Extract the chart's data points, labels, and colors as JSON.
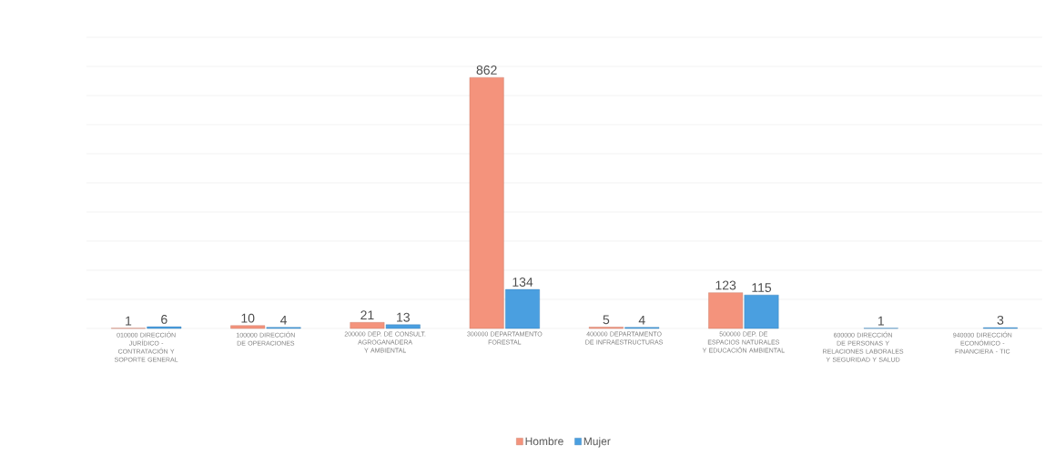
{
  "chart_data": {
    "type": "bar",
    "categories": [
      "010000 DIRECCIÓN JURÍDICO - CONTRATACIÓN Y SOPORTE GENERAL",
      "100000 DIRECCIÓN DE OPERACIONES",
      "200000 DEP. DE CONSULT. AGROGANADERA Y AMBIENTAL",
      "300000 DEPARTAMENTO FORESTAL",
      "400000 DEPARTAMENTO DE INFRAESTRUCTURAS",
      "500000 DEP. DE ESPACIOS NATURALES Y EDUCACIÓN AMBIENTAL",
      "600000 DIRECCIÓN DE PERSONAS Y RELACIONES LABORALES Y SEGURIDAD Y SALUD",
      "940000 DIRECCIÓN ECONÓMICO - FINANCIERA - TIC"
    ],
    "series": [
      {
        "name": "Hombre",
        "color": "#f4937c",
        "values": [
          1,
          10,
          21,
          862,
          5,
          123,
          null,
          null
        ]
      },
      {
        "name": "Mujer",
        "color": "#4a9fe0",
        "values": [
          6,
          4,
          13,
          134,
          4,
          115,
          1,
          3
        ]
      }
    ],
    "ylim": [
      0,
      1000
    ],
    "yticks": [
      {
        "value": 0,
        "label": null
      },
      {
        "value": 100,
        "label": null
      },
      {
        "value": 200,
        "label": null
      },
      {
        "value": 300,
        "label": null
      },
      {
        "value": 400,
        "label": null
      },
      {
        "value": 500,
        "label": null
      },
      {
        "value": 600,
        "label": null
      },
      {
        "value": 700,
        "label": null
      },
      {
        "value": 800,
        "label": null
      },
      {
        "value": 900,
        "label": null
      },
      {
        "value": 1000,
        "label": null
      }
    ],
    "grid": "y",
    "legend": "bottom",
    "data_labels": true
  }
}
